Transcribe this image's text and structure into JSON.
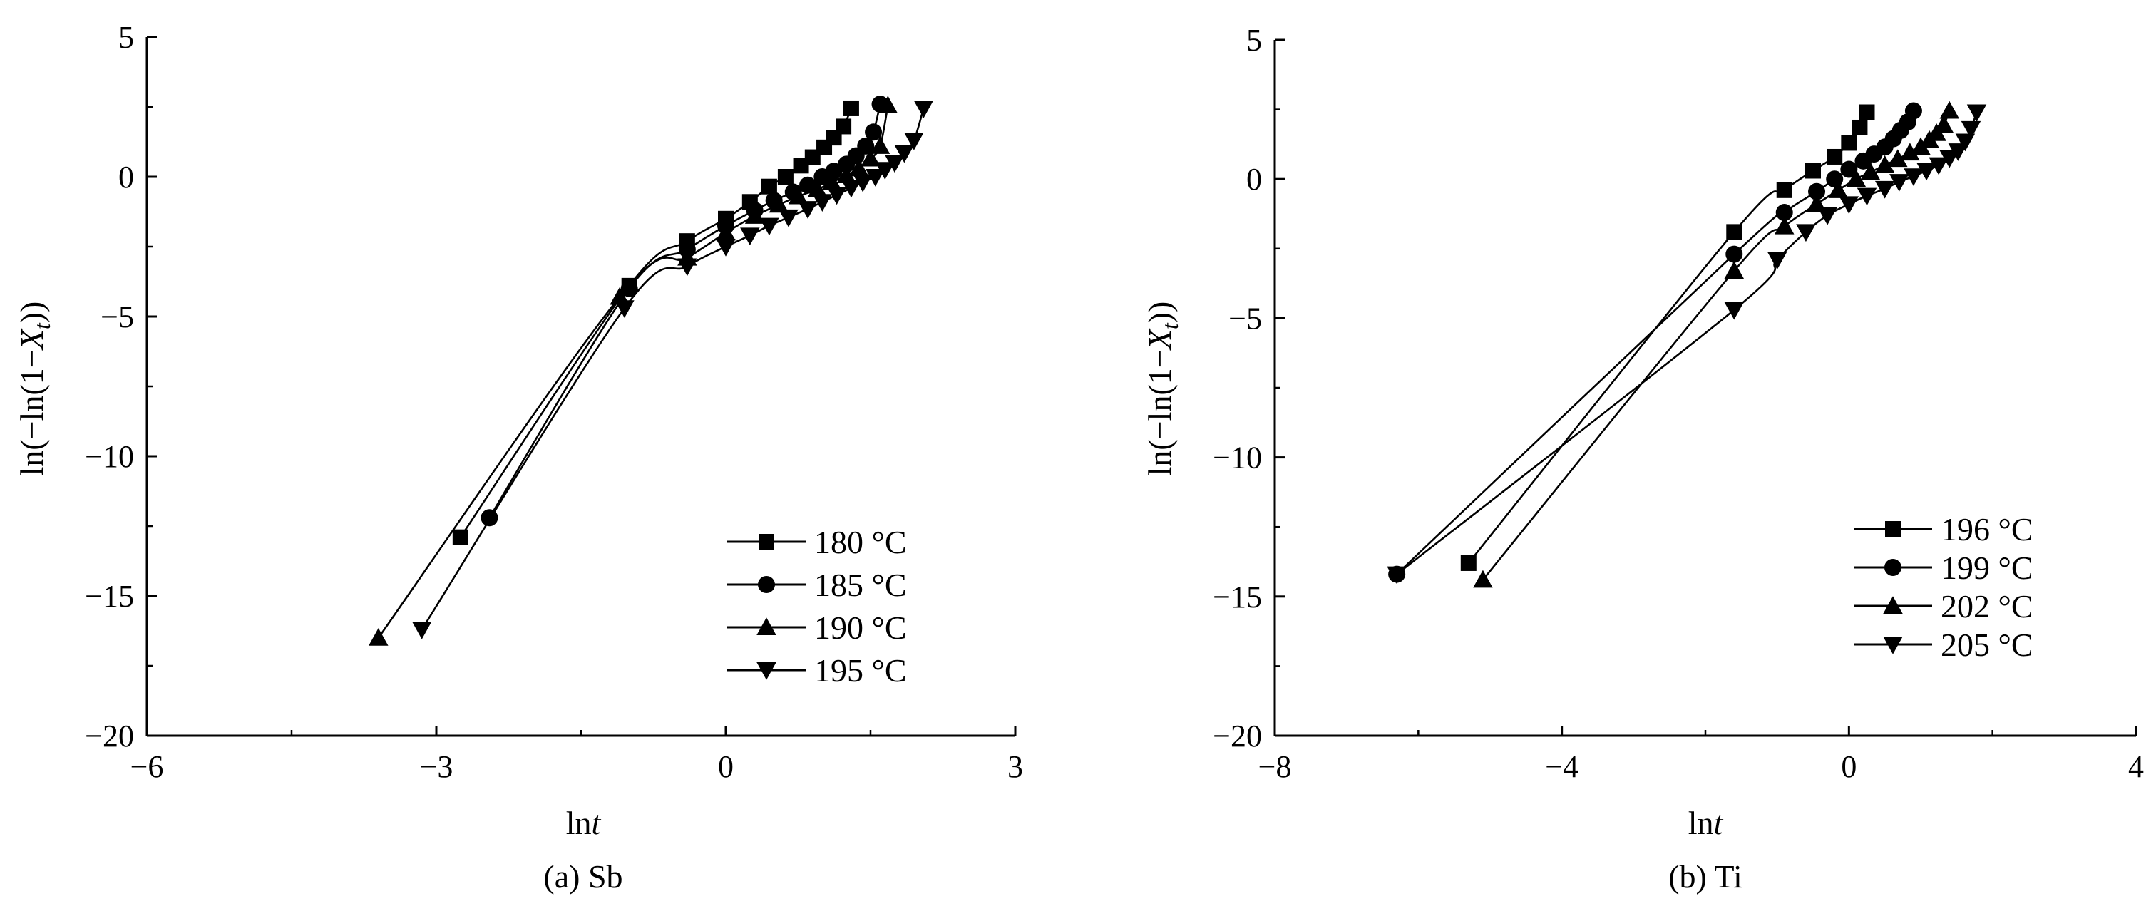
{
  "chart_data": [
    {
      "type": "line",
      "caption": "(a) Sb",
      "xlabel_prefix": "ln",
      "xlabel_var": "t",
      "ylabel_prefix": "ln(−ln(1−",
      "ylabel_var": "X",
      "ylabel_sub": "t",
      "ylabel_suffix": "))",
      "xlim": [
        -6,
        3
      ],
      "ylim": [
        -20,
        5
      ],
      "xticks": [
        -6,
        -3,
        0,
        3
      ],
      "yticks": [
        5,
        0,
        -5,
        -10,
        -15,
        -20
      ],
      "xtick_labels": [
        "−6",
        "−3",
        "0",
        "3"
      ],
      "ytick_labels": [
        "5",
        "0",
        "−5",
        "−10",
        "−15",
        "−20"
      ],
      "legend_position": "bottom-right",
      "series": [
        {
          "name": "180 °C",
          "marker": "square",
          "x": [
            -2.75,
            -1.0,
            -0.4,
            0.0,
            0.25,
            0.45,
            0.62,
            0.78,
            0.9,
            1.02,
            1.12,
            1.22,
            1.3
          ],
          "y": [
            -12.9,
            -3.9,
            -2.3,
            -1.5,
            -0.9,
            -0.35,
            0.0,
            0.4,
            0.7,
            1.05,
            1.4,
            1.8,
            2.45
          ]
        },
        {
          "name": "185 °C",
          "marker": "circle",
          "x": [
            -2.45,
            -1.0,
            -0.4,
            0.0,
            0.3,
            0.5,
            0.7,
            0.85,
            1.0,
            1.12,
            1.25,
            1.35,
            1.45,
            1.53,
            1.6
          ],
          "y": [
            -12.2,
            -4.0,
            -2.6,
            -1.75,
            -1.2,
            -0.85,
            -0.55,
            -0.3,
            0.0,
            0.2,
            0.45,
            0.75,
            1.1,
            1.6,
            2.6
          ]
        },
        {
          "name": "190 °C",
          "marker": "triangle-up",
          "x": [
            -3.6,
            -1.1,
            -0.4,
            0.0,
            0.3,
            0.55,
            0.75,
            0.95,
            1.1,
            1.25,
            1.38,
            1.5,
            1.6,
            1.68
          ],
          "y": [
            -16.5,
            -4.3,
            -2.9,
            -2.0,
            -1.4,
            -1.0,
            -0.7,
            -0.45,
            -0.2,
            0.05,
            0.3,
            0.65,
            1.1,
            2.55
          ]
        },
        {
          "name": "195 °C",
          "marker": "triangle-down",
          "x": [
            -3.15,
            -1.05,
            -0.4,
            0.0,
            0.25,
            0.45,
            0.65,
            0.85,
            1.0,
            1.15,
            1.3,
            1.42,
            1.55,
            1.65,
            1.75,
            1.85,
            1.95,
            2.05
          ],
          "y": [
            -16.2,
            -4.7,
            -3.2,
            -2.5,
            -2.1,
            -1.75,
            -1.45,
            -1.15,
            -0.9,
            -0.65,
            -0.4,
            -0.2,
            0.0,
            0.25,
            0.5,
            0.85,
            1.3,
            2.45
          ]
        }
      ]
    },
    {
      "type": "line",
      "caption": "(b) Ti",
      "xlabel_prefix": "ln",
      "xlabel_var": "t",
      "ylabel_prefix": "ln(−ln(1−",
      "ylabel_var": "X",
      "ylabel_sub": "t",
      "ylabel_suffix": "))",
      "xlim": [
        -8,
        4
      ],
      "ylim": [
        -20,
        5
      ],
      "xticks": [
        -8,
        -4,
        0,
        4
      ],
      "yticks": [
        5,
        0,
        -5,
        -10,
        -15,
        -20
      ],
      "xtick_labels": [
        "−8",
        "−4",
        "0",
        "4"
      ],
      "ytick_labels": [
        "5",
        "0",
        "−5",
        "−10",
        "−15",
        "−20"
      ],
      "legend_position": "bottom-right",
      "series": [
        {
          "name": "196 °C",
          "marker": "square",
          "x": [
            -5.3,
            -1.6,
            -0.9,
            -0.5,
            -0.2,
            0.0,
            0.15,
            0.25
          ],
          "y": [
            -13.8,
            -1.9,
            -0.4,
            0.3,
            0.8,
            1.3,
            1.85,
            2.4
          ]
        },
        {
          "name": "199 °C",
          "marker": "circle",
          "x": [
            -6.3,
            -1.6,
            -0.9,
            -0.45,
            -0.2,
            0.0,
            0.2,
            0.35,
            0.5,
            0.62,
            0.72,
            0.82,
            0.9
          ],
          "y": [
            -14.2,
            -2.7,
            -1.2,
            -0.45,
            0.0,
            0.35,
            0.65,
            0.9,
            1.15,
            1.45,
            1.75,
            2.05,
            2.45
          ]
        },
        {
          "name": "202 °C",
          "marker": "triangle-up",
          "x": [
            -5.1,
            -1.6,
            -0.9,
            -0.45,
            -0.15,
            0.1,
            0.3,
            0.5,
            0.68,
            0.85,
            1.0,
            1.12,
            1.22,
            1.32,
            1.4
          ],
          "y": [
            -14.4,
            -3.3,
            -1.7,
            -0.9,
            -0.4,
            0.0,
            0.25,
            0.5,
            0.72,
            0.95,
            1.15,
            1.4,
            1.65,
            1.95,
            2.45
          ]
        },
        {
          "name": "205 °C",
          "marker": "triangle-down",
          "x": [
            -6.3,
            -1.6,
            -1.0,
            -0.6,
            -0.3,
            0.0,
            0.25,
            0.5,
            0.7,
            0.9,
            1.08,
            1.25,
            1.4,
            1.52,
            1.62,
            1.7,
            1.78
          ],
          "y": [
            -14.2,
            -4.7,
            -2.9,
            -1.9,
            -1.3,
            -0.9,
            -0.6,
            -0.35,
            -0.1,
            0.1,
            0.3,
            0.5,
            0.75,
            1.0,
            1.35,
            1.8,
            2.4
          ]
        }
      ]
    }
  ]
}
